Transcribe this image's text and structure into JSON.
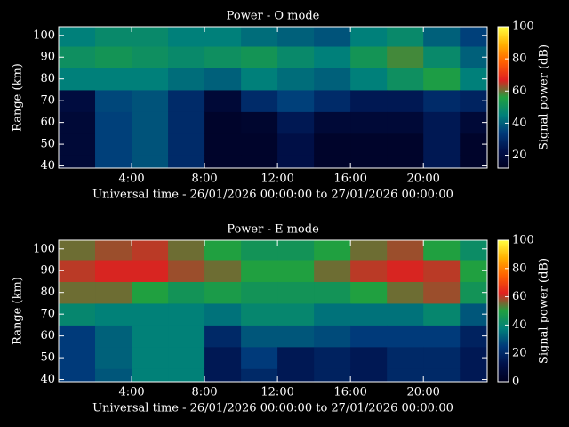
{
  "chart_data": [
    {
      "type": "heatmap",
      "title": "Power - O mode",
      "xlabel": "Universal time - 26/01/2026 00:00:00 to 27/01/2026 00:00:00",
      "ylabel": "Range (km)",
      "zlabel": "Signal power (dB)",
      "xbins": [
        0,
        2,
        4,
        6,
        8,
        10,
        12,
        14,
        16,
        18,
        20,
        22,
        23.5
      ],
      "ybins": [
        39,
        45,
        55,
        65,
        75,
        85,
        95,
        104
      ],
      "z": [
        [
          18,
          18,
          18,
          20,
          45,
          50,
          45
        ],
        [
          35,
          35,
          35,
          36,
          45,
          52,
          48
        ],
        [
          38,
          38,
          38,
          38,
          45,
          50,
          48
        ],
        [
          30,
          30,
          30,
          30,
          42,
          48,
          45
        ],
        [
          15,
          15,
          15,
          18,
          40,
          50,
          45
        ],
        [
          15,
          15,
          16,
          30,
          45,
          52,
          42
        ],
        [
          22,
          22,
          25,
          35,
          42,
          48,
          40
        ],
        [
          15,
          15,
          18,
          30,
          40,
          45,
          38
        ],
        [
          15,
          15,
          18,
          25,
          45,
          52,
          45
        ],
        [
          15,
          15,
          18,
          25,
          50,
          58,
          48
        ],
        [
          25,
          25,
          25,
          30,
          55,
          48,
          40
        ],
        [
          15,
          15,
          18,
          28,
          45,
          40,
          35
        ]
      ],
      "xlim": [
        0,
        23.5
      ],
      "xticks": [
        {
          "value": 4,
          "label": "4:00"
        },
        {
          "value": 8,
          "label": "8:00"
        },
        {
          "value": 12,
          "label": "12:00"
        },
        {
          "value": 16,
          "label": "16:00"
        },
        {
          "value": 20,
          "label": "20:00"
        }
      ],
      "ylim": [
        39,
        104
      ],
      "yticks": [
        40,
        50,
        60,
        70,
        80,
        90,
        100
      ],
      "zlim": [
        12,
        100
      ],
      "zticks": [
        20,
        40,
        60,
        80,
        100
      ],
      "colormap": [
        "#000020",
        "#00104a",
        "#003a7a",
        "#00807a",
        "#20a040",
        "#e02020",
        "#ff6000",
        "#ffb000",
        "#ffff40"
      ]
    },
    {
      "type": "heatmap",
      "title": "Power - E mode",
      "xlabel": "Universal time - 26/01/2026 00:00:00 to 27/01/2026 00:00:00",
      "ylabel": "Range (km)",
      "zlabel": "Signal power (dB)",
      "xbins": [
        0,
        2,
        4,
        6,
        8,
        10,
        12,
        14,
        16,
        18,
        20,
        22,
        23.5
      ],
      "ybins": [
        39,
        45,
        55,
        65,
        75,
        85,
        95,
        104
      ],
      "z": [
        [
          25,
          25,
          25,
          40,
          55,
          60,
          55
        ],
        [
          30,
          32,
          32,
          38,
          55,
          62,
          58
        ],
        [
          38,
          38,
          38,
          38,
          50,
          62,
          60
        ],
        [
          38,
          38,
          38,
          38,
          45,
          58,
          55
        ],
        [
          15,
          15,
          20,
          35,
          48,
          55,
          50
        ],
        [
          20,
          25,
          30,
          40,
          45,
          50,
          45
        ],
        [
          15,
          15,
          30,
          40,
          45,
          50,
          45
        ],
        [
          18,
          18,
          28,
          35,
          45,
          55,
          50
        ],
        [
          15,
          15,
          25,
          35,
          50,
          60,
          55
        ],
        [
          20,
          20,
          25,
          35,
          55,
          62,
          58
        ],
        [
          20,
          20,
          25,
          40,
          58,
          60,
          50
        ],
        [
          15,
          15,
          18,
          30,
          45,
          50,
          42
        ]
      ],
      "xlim": [
        0,
        23.5
      ],
      "xticks": [
        {
          "value": 4,
          "label": "4:00"
        },
        {
          "value": 8,
          "label": "8:00"
        },
        {
          "value": 12,
          "label": "12:00"
        },
        {
          "value": 16,
          "label": "16:00"
        },
        {
          "value": 20,
          "label": "20:00"
        }
      ],
      "ylim": [
        39,
        104
      ],
      "yticks": [
        40,
        50,
        60,
        70,
        80,
        90,
        100
      ],
      "zlim": [
        0,
        100
      ],
      "zticks": [
        0,
        20,
        40,
        60,
        80,
        100
      ],
      "colormap": [
        "#000020",
        "#00104a",
        "#003a7a",
        "#00807a",
        "#20a040",
        "#e02020",
        "#ff6000",
        "#ffb000",
        "#ffff40"
      ]
    }
  ]
}
